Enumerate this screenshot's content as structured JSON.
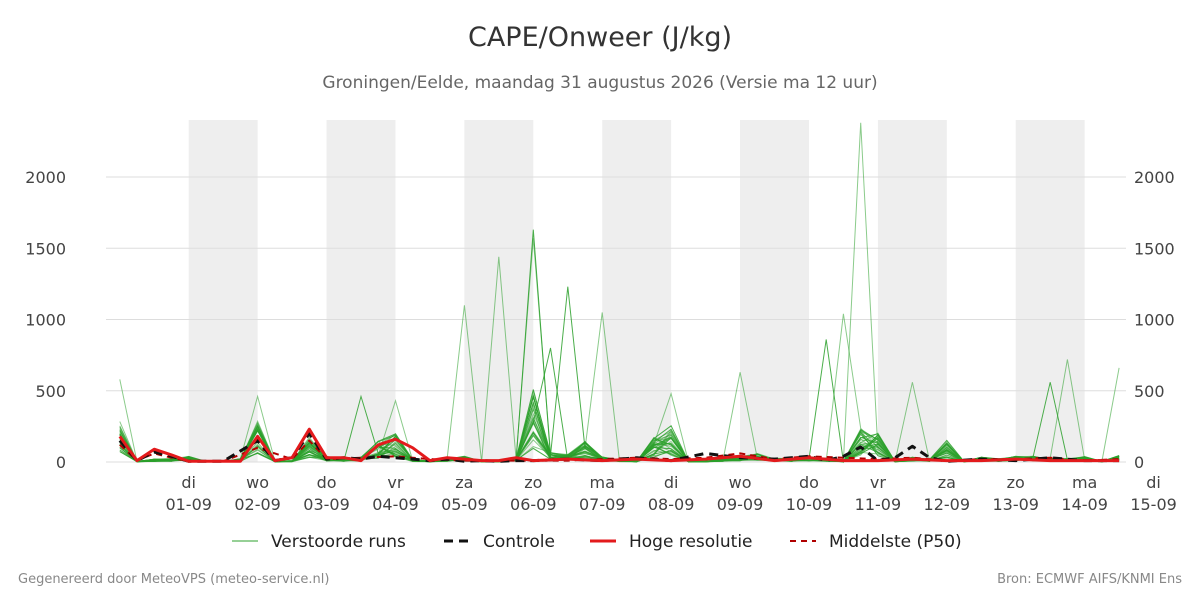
{
  "title": "CAPE/Onweer (J/kg)",
  "subtitle": "Groningen/Eelde, maandag 31 augustus 2026 (Versie ma 12 uur)",
  "footer_left": "Gegenereerd door MeteoVPS (meteo-service.nl)",
  "footer_right": "Bron: ECMWF AIFS/KNMI Ens",
  "colors": {
    "ensemble": "#2ca02c",
    "controle": "#111111",
    "hoge_resolutie": "#e31a1c",
    "p50": "#b00000",
    "shade": "#eeeeee",
    "grid": "#dddddd"
  },
  "chart_data": {
    "type": "line",
    "title": "CAPE/Onweer (J/kg)",
    "x_unit": "days after 31-08-2026 00:00",
    "xlim": [
      -0.2,
      14.6
    ],
    "ylim": [
      0,
      2400
    ],
    "yticks": [
      0,
      500,
      1000,
      1500,
      2000
    ],
    "grid": true,
    "legend_position": "bottom",
    "shaded_days": [
      1,
      3,
      5,
      7,
      9,
      11,
      13
    ],
    "x_ticks": [
      {
        "day": "di",
        "date": "01-09"
      },
      {
        "day": "wo",
        "date": "02-09"
      },
      {
        "day": "do",
        "date": "03-09"
      },
      {
        "day": "vr",
        "date": "04-09"
      },
      {
        "day": "za",
        "date": "05-09"
      },
      {
        "day": "zo",
        "date": "06-09"
      },
      {
        "day": "ma",
        "date": "07-09"
      },
      {
        "day": "di",
        "date": "08-09"
      },
      {
        "day": "wo",
        "date": "09-09"
      },
      {
        "day": "do",
        "date": "10-09"
      },
      {
        "day": "vr",
        "date": "11-09"
      },
      {
        "day": "za",
        "date": "12-09"
      },
      {
        "day": "zo",
        "date": "13-09"
      },
      {
        "day": "ma",
        "date": "14-09"
      },
      {
        "day": "di",
        "date": "15-09"
      }
    ],
    "legend": [
      {
        "key": "ensemble",
        "label": "Verstoorde runs"
      },
      {
        "key": "controle",
        "label": "Controle"
      },
      {
        "key": "hoge_resolutie",
        "label": "Hoge resolutie"
      },
      {
        "key": "p50",
        "label": "Middelste (P50)"
      }
    ],
    "series_controle": {
      "x": [
        0,
        0.25,
        0.5,
        0.75,
        1,
        1.5,
        2,
        2.25,
        2.5,
        2.75,
        3,
        3.25,
        3.5,
        3.75,
        4,
        4.25,
        4.5,
        4.75,
        5,
        5.25,
        5.5,
        5.75,
        6,
        6.5,
        7,
        7.5,
        8,
        8.5,
        9,
        9.5,
        10,
        10.25,
        10.5,
        10.75,
        11,
        11.25,
        11.5,
        11.75,
        12,
        12.5,
        13,
        13.5,
        14,
        14.5
      ],
      "y": [
        150,
        10,
        70,
        40,
        5,
        5,
        150,
        10,
        30,
        200,
        20,
        30,
        20,
        40,
        30,
        20,
        10,
        20,
        5,
        10,
        5,
        10,
        10,
        20,
        10,
        30,
        10,
        60,
        30,
        20,
        40,
        10,
        40,
        105,
        10,
        30,
        110,
        30,
        5,
        20,
        10,
        30,
        10,
        10
      ]
    },
    "series_hoge_resolutie": {
      "x": [
        0,
        0.25,
        0.5,
        0.75,
        1,
        1.25,
        1.5,
        1.75,
        2,
        2.25,
        2.5,
        2.75,
        3,
        3.25,
        3.5,
        3.75,
        4,
        4.25,
        4.5,
        4.75,
        5,
        5.25,
        5.5,
        5.75,
        6,
        6.5,
        7,
        7.5,
        8,
        8.5,
        9,
        9.5,
        10,
        10.5,
        11,
        11.5,
        12,
        12.5,
        13,
        13.5,
        14,
        14.5
      ],
      "y": [
        180,
        10,
        90,
        50,
        5,
        5,
        5,
        5,
        180,
        10,
        30,
        230,
        30,
        30,
        10,
        120,
        160,
        100,
        10,
        30,
        20,
        10,
        10,
        30,
        10,
        20,
        10,
        20,
        10,
        20,
        40,
        10,
        30,
        10,
        10,
        20,
        10,
        10,
        20,
        10,
        10,
        10
      ]
    },
    "series_p50": {
      "x": [
        0,
        0.25,
        0.5,
        0.75,
        1,
        1.5,
        2,
        2.5,
        2.75,
        3,
        3.5,
        4,
        4.5,
        5,
        5.5,
        6,
        6.5,
        7,
        7.5,
        8,
        8.5,
        9,
        9.5,
        10,
        10.5,
        11,
        11.5,
        12,
        12.5,
        13,
        13.5,
        14,
        14.5
      ],
      "y": [
        120,
        10,
        60,
        30,
        5,
        5,
        100,
        20,
        150,
        20,
        30,
        40,
        20,
        10,
        10,
        10,
        10,
        20,
        30,
        20,
        30,
        60,
        20,
        40,
        30,
        20,
        30,
        10,
        20,
        20,
        30,
        10,
        20
      ]
    }
  }
}
